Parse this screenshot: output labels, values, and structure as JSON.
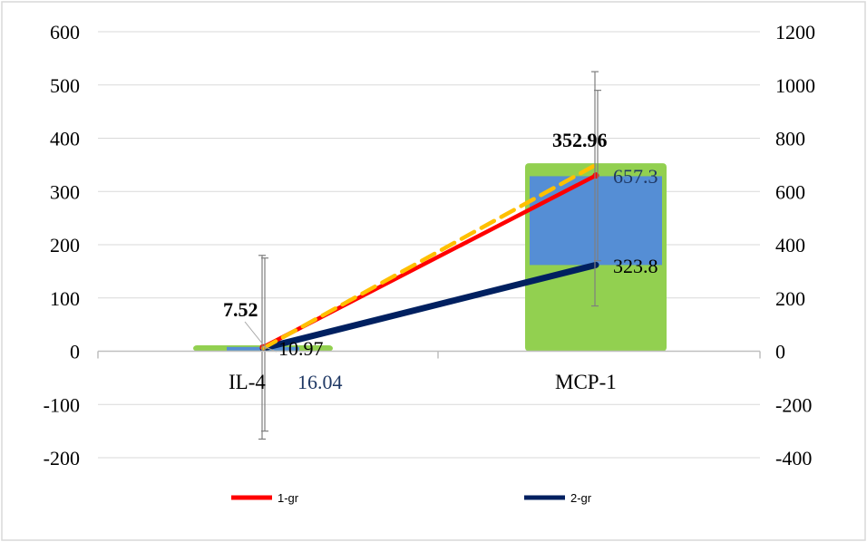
{
  "chart_data": {
    "type": "bar",
    "categories": [
      "IL-4",
      "MCP-1"
    ],
    "y_left": {
      "min": -200,
      "max": 600,
      "step": 100,
      "ticks": [
        "600",
        "500",
        "400",
        "300",
        "200",
        "100",
        "0",
        "-100",
        "-200"
      ]
    },
    "y_right": {
      "min": -400,
      "max": 1200,
      "step": 200,
      "ticks": [
        "1200",
        "1000",
        "800",
        "600",
        "400",
        "200",
        "0",
        "-200",
        "-400"
      ]
    },
    "bars_green": {
      "axis": "left",
      "values": [
        10.97,
        352.96
      ],
      "color": "#92d050"
    },
    "bars_blue": {
      "axis": "right",
      "low": [
        10.97,
        323.8
      ],
      "high": [
        16.04,
        657.3
      ],
      "color": "#558ed5"
    },
    "series": [
      {
        "name": "1-gr",
        "axis": "left",
        "values": [
          7.52,
          330
        ],
        "color": "#ff0000",
        "style": "solid"
      },
      {
        "name": "2-gr",
        "axis": "right",
        "values": [
          10.97,
          323.8
        ],
        "color": "#002060",
        "style": "solid"
      },
      {
        "name": "",
        "axis": "right",
        "values": [
          10.97,
          700
        ],
        "color": "#ffc000",
        "style": "dashed"
      }
    ],
    "error_bars": [
      {
        "axis": "left",
        "category": 0,
        "center": 7.52,
        "low": -165,
        "high": 180
      },
      {
        "axis": "left",
        "category": 0,
        "center": 7.52,
        "low": -150,
        "high": 175
      },
      {
        "axis": "left",
        "category": 1,
        "center": 330,
        "low": 85,
        "high": 525
      },
      {
        "axis": "left",
        "category": 1,
        "center": 330,
        "low": 170,
        "high": 490
      }
    ],
    "data_labels": [
      "7.52",
      "10.97",
      "16.04",
      "352.96",
      "657.3",
      "323.8"
    ],
    "legend": {
      "position": "bottom",
      "entries": [
        "1-gr",
        "2-gr"
      ]
    },
    "grid": true
  }
}
